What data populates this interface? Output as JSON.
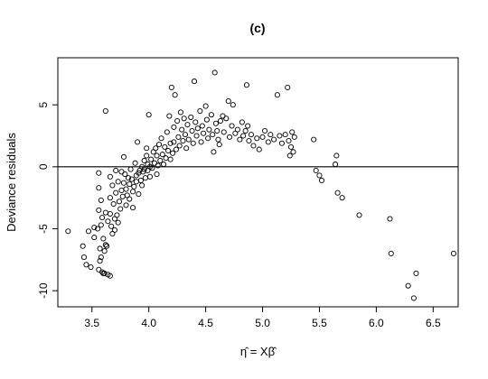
{
  "chart_data": {
    "type": "scatter",
    "title": "(c)",
    "xlabel": "η̂ = Xβ̂",
    "ylabel": "Deviance residuals",
    "xlim": [
      3.2,
      6.72
    ],
    "ylim": [
      -11.3,
      8.8
    ],
    "xticks": [
      3.5,
      4.0,
      4.5,
      5.0,
      5.5,
      6.0,
      6.5
    ],
    "xtick_labels": [
      "3.5",
      "4.0",
      "4.5",
      "5.0",
      "5.5",
      "6.0",
      "6.5"
    ],
    "yticks": [
      -10,
      -5,
      0,
      5
    ],
    "ytick_labels": [
      "-10",
      "-5",
      "0",
      "5"
    ],
    "reference_line_y": 0,
    "grid": false,
    "legend": "none",
    "marker": "open-circle",
    "points": [
      [
        3.29,
        -5.2
      ],
      [
        3.42,
        -6.4
      ],
      [
        3.43,
        -7.3
      ],
      [
        3.45,
        -7.9
      ],
      [
        3.47,
        -5.2
      ],
      [
        3.49,
        -8.1
      ],
      [
        3.52,
        -5.7
      ],
      [
        3.52,
        -4.9
      ],
      [
        3.55,
        -5.0
      ],
      [
        3.56,
        -8.3
      ],
      [
        3.56,
        -0.5
      ],
      [
        3.56,
        -1.7
      ],
      [
        3.56,
        -3.5
      ],
      [
        3.57,
        -6.6
      ],
      [
        3.57,
        -7.6
      ],
      [
        3.58,
        -7.3
      ],
      [
        3.58,
        -2.7
      ],
      [
        3.58,
        -4.7
      ],
      [
        3.59,
        -4.1
      ],
      [
        3.59,
        -8.5
      ],
      [
        3.6,
        -8.6
      ],
      [
        3.6,
        -5.8
      ],
      [
        3.61,
        -6.8
      ],
      [
        3.61,
        -8.6
      ],
      [
        3.62,
        -3.7
      ],
      [
        3.62,
        4.5
      ],
      [
        3.62,
        -6.3
      ],
      [
        3.63,
        -6.4
      ],
      [
        3.64,
        -4.4
      ],
      [
        3.64,
        -8.7
      ],
      [
        3.66,
        -0.8
      ],
      [
        3.66,
        -2.5
      ],
      [
        3.66,
        -3.8
      ],
      [
        3.66,
        -8.8
      ],
      [
        3.67,
        -4.8
      ],
      [
        3.68,
        -5.4
      ],
      [
        3.68,
        -1.5
      ],
      [
        3.69,
        -3.0
      ],
      [
        3.7,
        -4.2
      ],
      [
        3.7,
        -5.1
      ],
      [
        3.71,
        -0.3
      ],
      [
        3.71,
        -2.1
      ],
      [
        3.72,
        -3.9
      ],
      [
        3.73,
        -4.5
      ],
      [
        3.73,
        -1.2
      ],
      [
        3.74,
        -2.8
      ],
      [
        3.75,
        -3.4
      ],
      [
        3.76,
        -1.9
      ],
      [
        3.76,
        -0.4
      ],
      [
        3.77,
        -2.4
      ],
      [
        3.78,
        -1.3
      ],
      [
        3.78,
        0.8
      ],
      [
        3.79,
        -0.6
      ],
      [
        3.8,
        -3.1
      ],
      [
        3.8,
        -1.8
      ],
      [
        3.81,
        -2.3
      ],
      [
        3.82,
        -0.9
      ],
      [
        3.83,
        -2.6
      ],
      [
        3.83,
        -1.4
      ],
      [
        3.84,
        -0.2
      ],
      [
        3.85,
        -1.0
      ],
      [
        3.86,
        -2.0
      ],
      [
        3.86,
        -3.3
      ],
      [
        3.87,
        -1.6
      ],
      [
        3.88,
        0.3
      ],
      [
        3.89,
        -0.7
      ],
      [
        3.89,
        -1.2
      ],
      [
        3.9,
        2.0
      ],
      [
        3.91,
        -0.5
      ],
      [
        3.91,
        -2.2
      ],
      [
        3.92,
        -0.3
      ],
      [
        3.93,
        -1.1
      ],
      [
        3.94,
        0.0
      ],
      [
        3.94,
        -1.5
      ],
      [
        3.95,
        -0.4
      ],
      [
        3.96,
        0.5
      ],
      [
        3.96,
        -0.2
      ],
      [
        3.97,
        -0.9
      ],
      [
        3.98,
        0.9
      ],
      [
        3.98,
        1.5
      ],
      [
        3.99,
        -0.3
      ],
      [
        3.99,
        0.2
      ],
      [
        4.0,
        4.2
      ],
      [
        4.01,
        0.0
      ],
      [
        4.01,
        -0.8
      ],
      [
        4.02,
        0.6
      ],
      [
        4.03,
        -0.1
      ],
      [
        4.04,
        1.2
      ],
      [
        4.05,
        0.3
      ],
      [
        4.06,
        1.5
      ],
      [
        4.07,
        0.9
      ],
      [
        4.07,
        -0.6
      ],
      [
        4.08,
        0.1
      ],
      [
        4.09,
        1.8
      ],
      [
        4.1,
        0.5
      ],
      [
        4.11,
        2.3
      ],
      [
        4.12,
        1.0
      ],
      [
        4.13,
        0.2
      ],
      [
        4.14,
        1.6
      ],
      [
        4.15,
        0.7
      ],
      [
        4.16,
        2.8
      ],
      [
        4.17,
        1.3
      ],
      [
        4.18,
        4.1
      ],
      [
        4.19,
        1.9
      ],
      [
        4.19,
        0.6
      ],
      [
        4.2,
        6.4
      ],
      [
        4.21,
        1.1
      ],
      [
        4.22,
        3.2
      ],
      [
        4.22,
        2.0
      ],
      [
        4.23,
        5.8
      ],
      [
        4.24,
        1.4
      ],
      [
        4.25,
        3.7
      ],
      [
        4.26,
        2.4
      ],
      [
        4.27,
        1.7
      ],
      [
        4.28,
        4.4
      ],
      [
        4.29,
        3.0
      ],
      [
        4.3,
        2.1
      ],
      [
        4.31,
        3.9
      ],
      [
        4.32,
        2.6
      ],
      [
        4.33,
        1.5
      ],
      [
        4.34,
        3.4
      ],
      [
        4.35,
        2.2
      ],
      [
        4.37,
        4.0
      ],
      [
        4.38,
        2.9
      ],
      [
        4.39,
        1.9
      ],
      [
        4.4,
        6.9
      ],
      [
        4.41,
        3.6
      ],
      [
        4.42,
        2.5
      ],
      [
        4.43,
        3.1
      ],
      [
        4.45,
        4.5
      ],
      [
        4.46,
        2.0
      ],
      [
        4.47,
        3.3
      ],
      [
        4.48,
        2.7
      ],
      [
        4.5,
        4.9
      ],
      [
        4.51,
        3.8
      ],
      [
        4.52,
        2.3
      ],
      [
        4.53,
        3.0
      ],
      [
        4.55,
        4.2
      ],
      [
        4.56,
        2.6
      ],
      [
        4.57,
        1.2
      ],
      [
        4.58,
        7.6
      ],
      [
        4.59,
        3.5
      ],
      [
        4.6,
        2.9
      ],
      [
        4.61,
        2.2
      ],
      [
        4.62,
        1.8
      ],
      [
        4.63,
        3.7
      ],
      [
        4.65,
        4.1
      ],
      [
        4.66,
        2.8
      ],
      [
        4.68,
        3.9
      ],
      [
        4.7,
        5.3
      ],
      [
        4.71,
        2.4
      ],
      [
        4.73,
        3.3
      ],
      [
        4.74,
        5.0
      ],
      [
        4.76,
        2.7
      ],
      [
        4.78,
        3.0
      ],
      [
        4.8,
        2.2
      ],
      [
        4.82,
        3.6
      ],
      [
        4.83,
        2.5
      ],
      [
        4.85,
        2.9
      ],
      [
        4.86,
        6.6
      ],
      [
        4.87,
        3.3
      ],
      [
        4.88,
        2.1
      ],
      [
        4.9,
        2.6
      ],
      [
        4.92,
        1.7
      ],
      [
        4.95,
        2.3
      ],
      [
        4.97,
        1.4
      ],
      [
        5.0,
        2.4
      ],
      [
        5.02,
        2.9
      ],
      [
        5.05,
        2.0
      ],
      [
        5.07,
        2.6
      ],
      [
        5.1,
        2.2
      ],
      [
        5.13,
        5.8
      ],
      [
        5.15,
        2.5
      ],
      [
        5.17,
        1.9
      ],
      [
        5.2,
        2.6
      ],
      [
        5.22,
        6.4
      ],
      [
        5.23,
        2.1
      ],
      [
        5.24,
        0.9
      ],
      [
        5.25,
        1.6
      ],
      [
        5.26,
        2.8
      ],
      [
        5.27,
        1.2
      ],
      [
        5.28,
        2.4
      ],
      [
        5.45,
        2.2
      ],
      [
        5.47,
        -0.3
      ],
      [
        5.5,
        -0.7
      ],
      [
        5.52,
        -1.1
      ],
      [
        5.65,
        0.9
      ],
      [
        5.64,
        0.2
      ],
      [
        5.66,
        -2.1
      ],
      [
        5.7,
        -2.5
      ],
      [
        5.85,
        -3.9
      ],
      [
        6.12,
        -4.2
      ],
      [
        6.13,
        -7.0
      ],
      [
        6.28,
        -9.6
      ],
      [
        6.33,
        -10.6
      ],
      [
        6.35,
        -8.6
      ],
      [
        6.68,
        -7.0
      ]
    ]
  }
}
